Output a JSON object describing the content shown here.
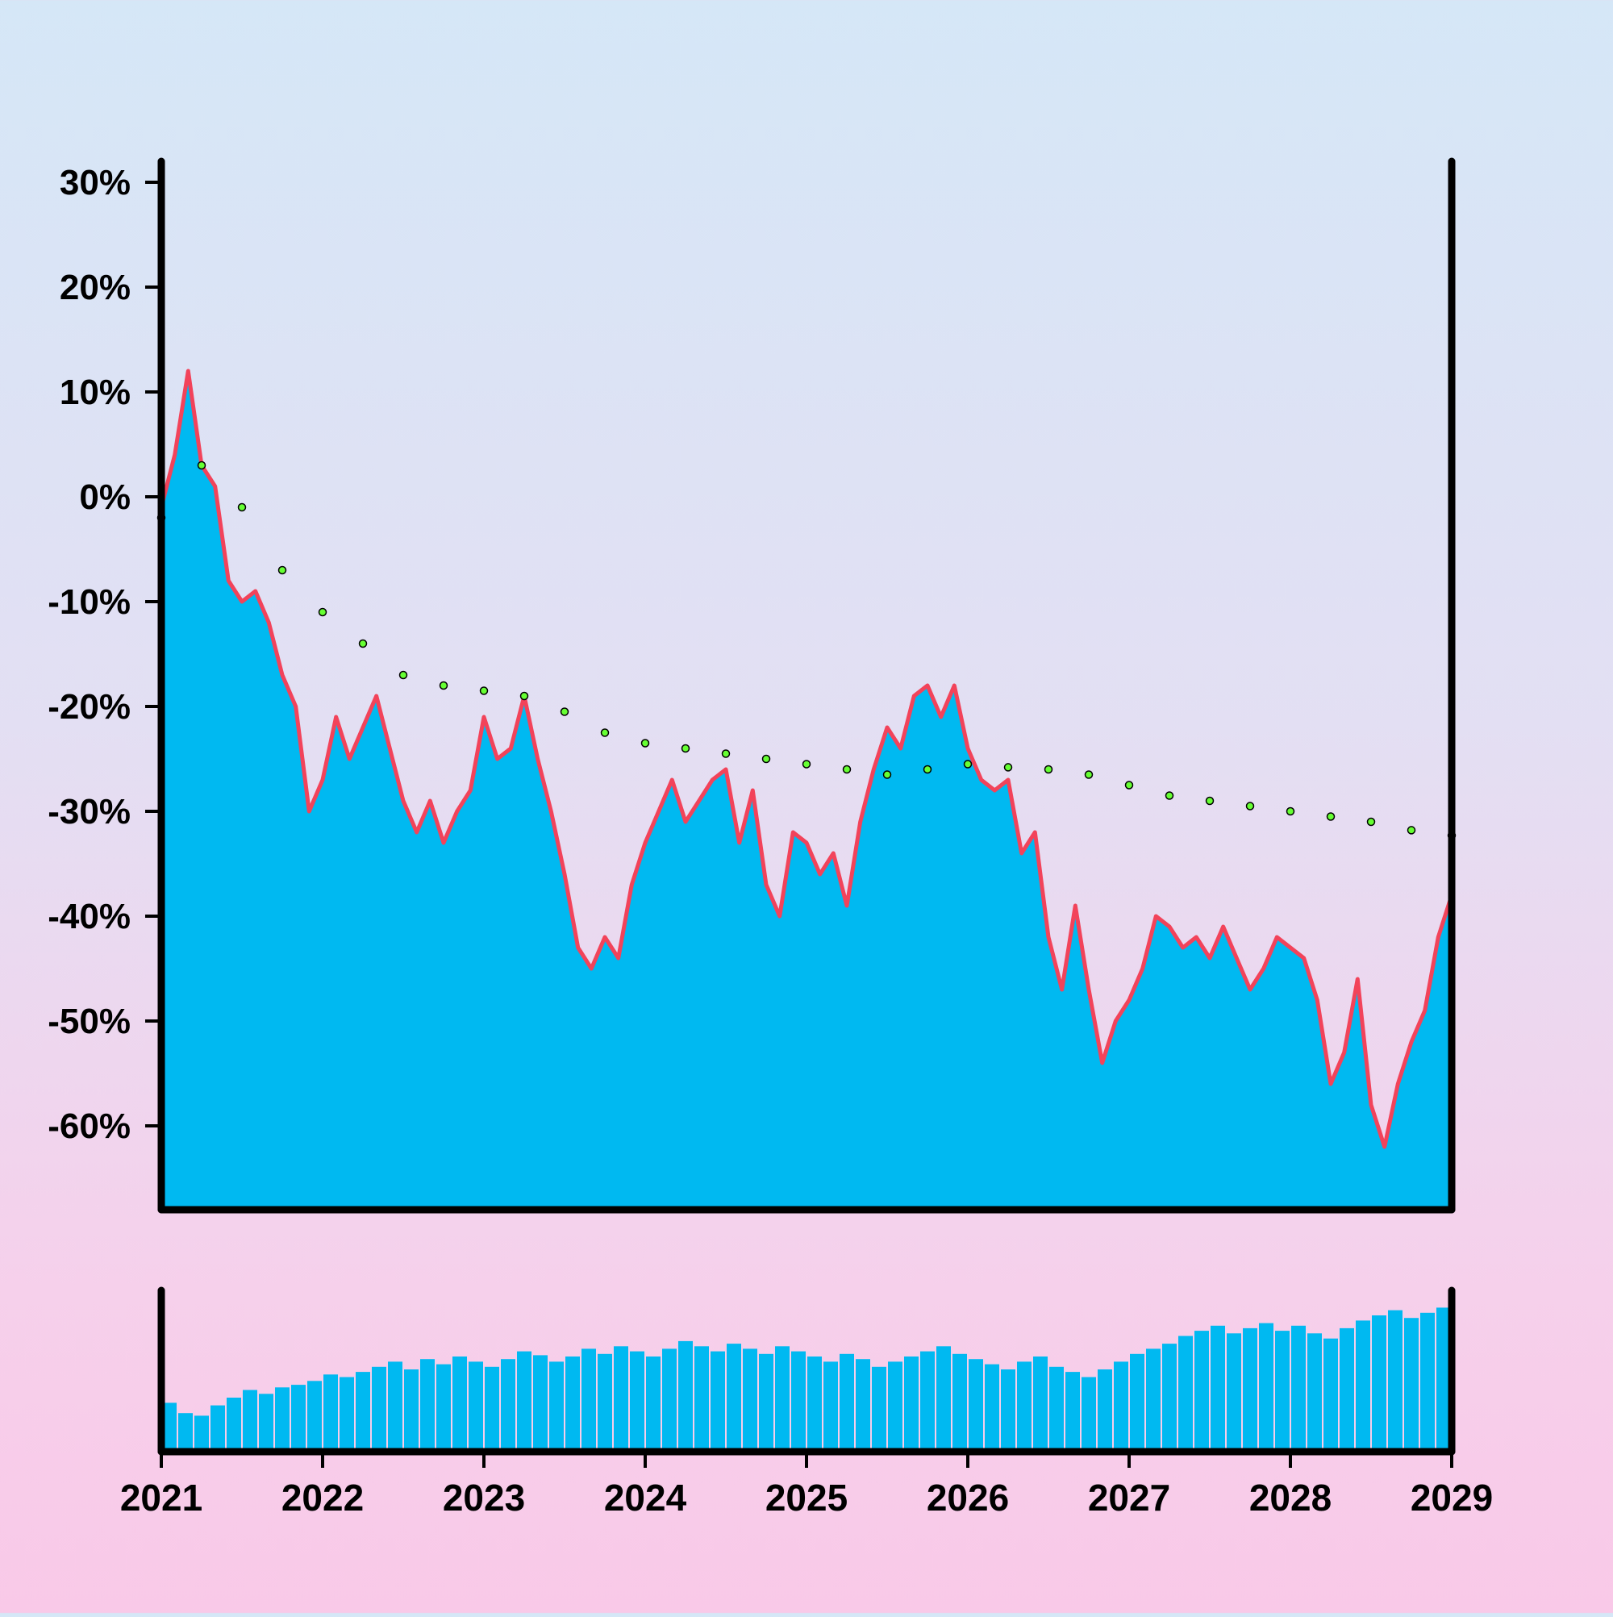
{
  "chart_data": {
    "type": "area",
    "title": "",
    "xlabel": "",
    "ylabel": "",
    "x_ticks": [
      "2021",
      "2022",
      "2023",
      "2024",
      "2025",
      "2026",
      "2027",
      "2028",
      "2029"
    ],
    "y_ticks": [
      "30%",
      "20%",
      "10%",
      "0%",
      "-10%",
      "-20%",
      "-30%",
      "-40%",
      "-50%",
      "-60%"
    ],
    "xlim": [
      "2021-01",
      "2029-01"
    ],
    "ylim": [
      -68,
      32
    ],
    "grid": false,
    "colors": {
      "area": "#00b9f1",
      "line": "#f2435a",
      "trend_marker": "#66ff33",
      "axis": "#000000"
    },
    "series": [
      {
        "kind": "area-line",
        "x": [
          "2021-01",
          "2021-02",
          "2021-03",
          "2021-04",
          "2021-05",
          "2021-06",
          "2021-07",
          "2021-08",
          "2021-09",
          "2021-10",
          "2021-11",
          "2021-12",
          "2022-01",
          "2022-02",
          "2022-03",
          "2022-04",
          "2022-05",
          "2022-06",
          "2022-07",
          "2022-08",
          "2022-09",
          "2022-10",
          "2022-11",
          "2022-12",
          "2023-01",
          "2023-02",
          "2023-03",
          "2023-04",
          "2023-05",
          "2023-06",
          "2023-07",
          "2023-08",
          "2023-09",
          "2023-10",
          "2023-11",
          "2023-12",
          "2024-01",
          "2024-02",
          "2024-03",
          "2024-04",
          "2024-05",
          "2024-06",
          "2024-07",
          "2024-08",
          "2024-09",
          "2024-10",
          "2024-11",
          "2024-12",
          "2025-01",
          "2025-02",
          "2025-03",
          "2025-04",
          "2025-05",
          "2025-06",
          "2025-07",
          "2025-08",
          "2025-09",
          "2025-10",
          "2025-11",
          "2025-12",
          "2026-01",
          "2026-02",
          "2026-03",
          "2026-04",
          "2026-05",
          "2026-06",
          "2026-07",
          "2026-08",
          "2026-09",
          "2026-10",
          "2026-11",
          "2026-12",
          "2027-01",
          "2027-02",
          "2027-03",
          "2027-04",
          "2027-05",
          "2027-06",
          "2027-07",
          "2027-08",
          "2027-09",
          "2027-10",
          "2027-11",
          "2027-12",
          "2028-01",
          "2028-02",
          "2028-03",
          "2028-04",
          "2028-05",
          "2028-06",
          "2028-07",
          "2028-08",
          "2028-09",
          "2028-10",
          "2028-11",
          "2028-12",
          "2029-01"
        ],
        "values": [
          -1,
          4,
          12,
          3,
          1,
          -8,
          -10,
          -9,
          -12,
          -17,
          -20,
          -30,
          -27,
          -21,
          -25,
          -22,
          -19,
          -24,
          -29,
          -32,
          -29,
          -33,
          -30,
          -28,
          -21,
          -25,
          -24,
          -19,
          -25,
          -30,
          -36,
          -43,
          -45,
          -42,
          -44,
          -37,
          -33,
          -30,
          -27,
          -31,
          -29,
          -27,
          -26,
          -33,
          -28,
          -37,
          -40,
          -32,
          -33,
          -36,
          -34,
          -39,
          -31,
          -26,
          -22,
          -24,
          -19,
          -18,
          -21,
          -18,
          -24,
          -27,
          -28,
          -27,
          -34,
          -32,
          -42,
          -47,
          -39,
          -47,
          -54,
          -50,
          -48,
          -45,
          -40,
          -41,
          -43,
          -42,
          -44,
          -41,
          -44,
          -47,
          -45,
          -42,
          -43,
          -44,
          -48,
          -56,
          -53,
          -46,
          -58,
          -62,
          -56,
          -52,
          -49,
          -42,
          -38
        ]
      },
      {
        "kind": "trend-markers",
        "x": [
          "2021-01",
          "2021-04",
          "2021-07",
          "2021-10",
          "2022-01",
          "2022-04",
          "2022-07",
          "2022-10",
          "2023-01",
          "2023-04",
          "2023-07",
          "2023-10",
          "2024-01",
          "2024-04",
          "2024-07",
          "2024-10",
          "2025-01",
          "2025-04",
          "2025-07",
          "2025-10",
          "2026-01",
          "2026-04",
          "2026-07",
          "2026-10",
          "2027-01",
          "2027-04",
          "2027-07",
          "2027-10",
          "2028-01",
          "2028-04",
          "2028-07",
          "2028-10",
          "2029-01"
        ],
        "values": [
          -2,
          3,
          -1,
          -7,
          -11,
          -14,
          -17,
          -18,
          -18.5,
          -19,
          -20.5,
          -22.5,
          -23.5,
          -24,
          -24.5,
          -25,
          -25.5,
          -26,
          -26.5,
          -26,
          -25.5,
          -25.8,
          -26,
          -26.5,
          -27.5,
          -28.5,
          -29,
          -29.5,
          -30,
          -30.5,
          -31,
          -31.8,
          -32.3
        ]
      },
      {
        "kind": "volume-bars",
        "x_start": "2021-01",
        "x_end": "2029-01",
        "values": [
          38,
          30,
          28,
          36,
          42,
          48,
          45,
          50,
          52,
          55,
          60,
          58,
          62,
          66,
          70,
          64,
          72,
          68,
          74,
          70,
          66,
          72,
          78,
          75,
          70,
          74,
          80,
          76,
          82,
          78,
          74,
          80,
          86,
          82,
          78,
          84,
          80,
          76,
          82,
          78,
          74,
          70,
          76,
          72,
          66,
          70,
          74,
          78,
          82,
          76,
          72,
          68,
          64,
          70,
          74,
          66,
          62,
          58,
          64,
          70,
          76,
          80,
          84,
          90,
          94,
          98,
          92,
          96,
          100,
          94,
          98,
          92,
          88,
          96,
          102,
          106,
          110,
          104,
          108,
          112
        ]
      }
    ]
  }
}
